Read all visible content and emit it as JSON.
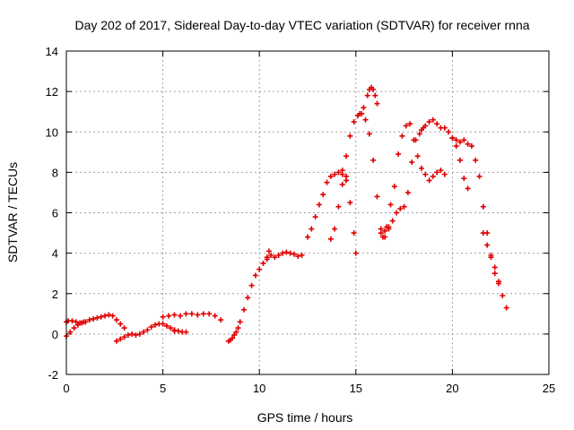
{
  "chart_data": {
    "type": "scatter",
    "title": "Day 202 of 2017, Sidereal Day-to-day VTEC variation (SDTVAR) for receiver rnna",
    "xlabel": "GPS time / hours",
    "ylabel": "SDTVAR / TECUs",
    "xlim": [
      0,
      25
    ],
    "ylim": [
      -2,
      14
    ],
    "xticks": [
      "0",
      "5",
      "10",
      "15",
      "20",
      "25"
    ],
    "yticks": [
      "-2",
      "0",
      "2",
      "4",
      "6",
      "8",
      "10",
      "12",
      "14"
    ],
    "grid": true,
    "marker": "+",
    "color": "#e00000",
    "series": [
      {
        "x": [
          0.0,
          0.1,
          0.3,
          0.5,
          0.7,
          0.9
        ],
        "y": [
          0.6,
          0.65,
          0.65,
          0.6,
          0.55,
          0.6
        ]
      },
      {
        "x": [
          0.0,
          0.2,
          0.4,
          0.6,
          0.8,
          1.0,
          1.2,
          1.4,
          1.6,
          1.8,
          2.0,
          2.2,
          2.4,
          2.6,
          2.8,
          3.0
        ],
        "y": [
          -0.1,
          0.1,
          0.3,
          0.45,
          0.55,
          0.6,
          0.7,
          0.75,
          0.8,
          0.85,
          0.9,
          0.95,
          0.9,
          0.7,
          0.5,
          0.3
        ]
      },
      {
        "x": [
          2.6,
          2.8,
          3.0,
          3.2,
          3.4,
          3.6,
          3.8,
          4.0,
          4.2,
          4.4,
          4.6,
          4.8,
          5.0,
          5.2,
          5.4,
          5.6
        ],
        "y": [
          -0.35,
          -0.25,
          -0.15,
          -0.05,
          0.0,
          -0.05,
          0.0,
          0.1,
          0.2,
          0.35,
          0.45,
          0.5,
          0.5,
          0.4,
          0.3,
          0.2
        ]
      },
      {
        "x": [
          5.6,
          5.8,
          6.0,
          6.2
        ],
        "y": [
          0.15,
          0.15,
          0.1,
          0.1
        ]
      },
      {
        "x": [
          5.0,
          5.3,
          5.6,
          5.9,
          6.2,
          6.5,
          6.8,
          7.1,
          7.4,
          7.7,
          8.0
        ],
        "y": [
          0.85,
          0.9,
          0.95,
          0.9,
          1.0,
          1.0,
          0.95,
          1.0,
          1.0,
          0.9,
          0.7
        ]
      },
      {
        "x": [
          8.4,
          8.5,
          8.6,
          8.7,
          8.8,
          8.9,
          9.0,
          9.2,
          9.4,
          9.6,
          9.8,
          10.0,
          10.2,
          10.4
        ],
        "y": [
          -0.35,
          -0.3,
          -0.2,
          -0.05,
          0.1,
          0.3,
          0.6,
          1.2,
          1.8,
          2.4,
          2.9,
          3.2,
          3.5,
          3.7
        ]
      },
      {
        "x": [
          10.4,
          10.5,
          10.6,
          10.8,
          11.0,
          11.2,
          11.4,
          11.6,
          11.8,
          12.0,
          12.2
        ],
        "y": [
          3.8,
          4.1,
          3.9,
          3.8,
          3.9,
          4.0,
          4.05,
          4.0,
          3.95,
          3.85,
          3.9
        ]
      },
      {
        "x": [
          12.5,
          12.7,
          12.9,
          13.1,
          13.3,
          13.5,
          13.7,
          13.9,
          14.1,
          14.3,
          14.5
        ],
        "y": [
          4.8,
          5.2,
          5.8,
          6.4,
          6.9,
          7.5,
          7.8,
          7.9,
          8.0,
          8.1,
          7.6
        ]
      },
      {
        "x": [
          13.7,
          13.9,
          14.1,
          14.3,
          14.5,
          14.7,
          14.9,
          15.0
        ],
        "y": [
          4.7,
          5.2,
          6.3,
          7.4,
          7.8,
          6.5,
          5.0,
          4.0
        ]
      },
      {
        "x": [
          14.3,
          14.5,
          14.7,
          14.9,
          15.1,
          15.3,
          15.5,
          15.7,
          15.9,
          16.1,
          16.3,
          16.5,
          16.7
        ],
        "y": [
          7.9,
          8.8,
          9.8,
          10.5,
          10.8,
          10.9,
          10.6,
          9.9,
          8.6,
          6.8,
          5.2,
          4.8,
          5.2
        ]
      },
      {
        "x": [
          15.2,
          15.4,
          15.6,
          15.7,
          15.8,
          15.9,
          16.0,
          16.1
        ],
        "y": [
          10.9,
          11.2,
          11.8,
          12.1,
          12.2,
          12.1,
          11.8,
          11.4
        ]
      },
      {
        "x": [
          16.3,
          16.5,
          16.7,
          16.9,
          17.1,
          17.3,
          17.5,
          17.7,
          17.9,
          18.1,
          18.3,
          18.5
        ],
        "y": [
          5.0,
          5.1,
          5.3,
          5.6,
          6.0,
          6.2,
          6.3,
          7.0,
          8.5,
          9.6,
          9.9,
          10.2
        ]
      },
      {
        "x": [
          16.4,
          16.6,
          16.8,
          17.0,
          17.2,
          17.4,
          17.6,
          17.8,
          18.0,
          18.2,
          18.4,
          18.6,
          18.8,
          19.0,
          19.2,
          19.4,
          19.6
        ],
        "y": [
          4.8,
          5.3,
          6.4,
          7.3,
          8.9,
          9.8,
          10.3,
          10.4,
          9.6,
          8.8,
          8.2,
          7.9,
          7.6,
          7.8,
          8.0,
          8.1,
          7.9
        ]
      },
      {
        "x": [
          18.4,
          18.6,
          18.8,
          19.0,
          19.2,
          19.4,
          19.6,
          19.8,
          20.0,
          20.2,
          20.4,
          20.6,
          20.8
        ],
        "y": [
          10.1,
          10.3,
          10.5,
          10.6,
          10.4,
          10.2,
          10.2,
          10.0,
          9.7,
          9.3,
          8.6,
          7.7,
          7.2
        ]
      },
      {
        "x": [
          20.0,
          20.2,
          20.4,
          20.6,
          20.8,
          21.0,
          21.2,
          21.4,
          21.6,
          21.8,
          22.0,
          22.2,
          22.4,
          22.6,
          22.8
        ],
        "y": [
          9.7,
          9.6,
          9.5,
          9.6,
          9.4,
          9.3,
          8.6,
          7.8,
          6.3,
          5.0,
          3.8,
          3.0,
          2.5,
          1.9,
          1.3
        ]
      },
      {
        "x": [
          21.6,
          21.8,
          22.0,
          22.2,
          22.4
        ],
        "y": [
          5.0,
          4.4,
          3.9,
          3.3,
          2.6
        ]
      }
    ]
  }
}
